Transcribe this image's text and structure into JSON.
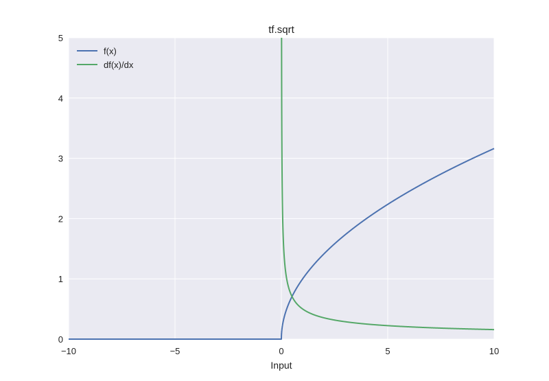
{
  "chart_data": {
    "type": "line",
    "title": "tf.sqrt",
    "xlabel": "Input",
    "ylabel": "",
    "xlim": [
      -10,
      10
    ],
    "ylim": [
      0,
      5
    ],
    "xticks": [
      -10,
      -5,
      0,
      5,
      10
    ],
    "xtick_labels": [
      "−10",
      "−5",
      "0",
      "5",
      "10"
    ],
    "yticks": [
      0,
      1,
      2,
      3,
      4,
      5
    ],
    "ytick_labels": [
      "0",
      "1",
      "2",
      "3",
      "4",
      "5"
    ],
    "grid": true,
    "legend_position": "top-left",
    "series": [
      {
        "name": "f(x)",
        "color": "#4c72b0",
        "function": "sqrt(max(x,0))",
        "x": [
          -10,
          -5,
          0,
          0.25,
          0.5,
          1,
          2,
          3,
          4,
          5,
          6,
          7,
          8,
          9,
          10
        ],
        "y": [
          0,
          0,
          0,
          0.5,
          0.71,
          1,
          1.41,
          1.73,
          2,
          2.24,
          2.45,
          2.65,
          2.83,
          3,
          3.16
        ]
      },
      {
        "name": "df(x)/dx",
        "color": "#55a868",
        "function": "1/(2*sqrt(x)) for x>0",
        "x": [
          0.01,
          0.05,
          0.1,
          0.25,
          0.5,
          1,
          2,
          3,
          4,
          5,
          6,
          7,
          8,
          9,
          10
        ],
        "y": [
          5,
          2.24,
          1.58,
          1,
          0.71,
          0.5,
          0.35,
          0.29,
          0.25,
          0.22,
          0.2,
          0.19,
          0.18,
          0.17,
          0.16
        ]
      }
    ]
  }
}
